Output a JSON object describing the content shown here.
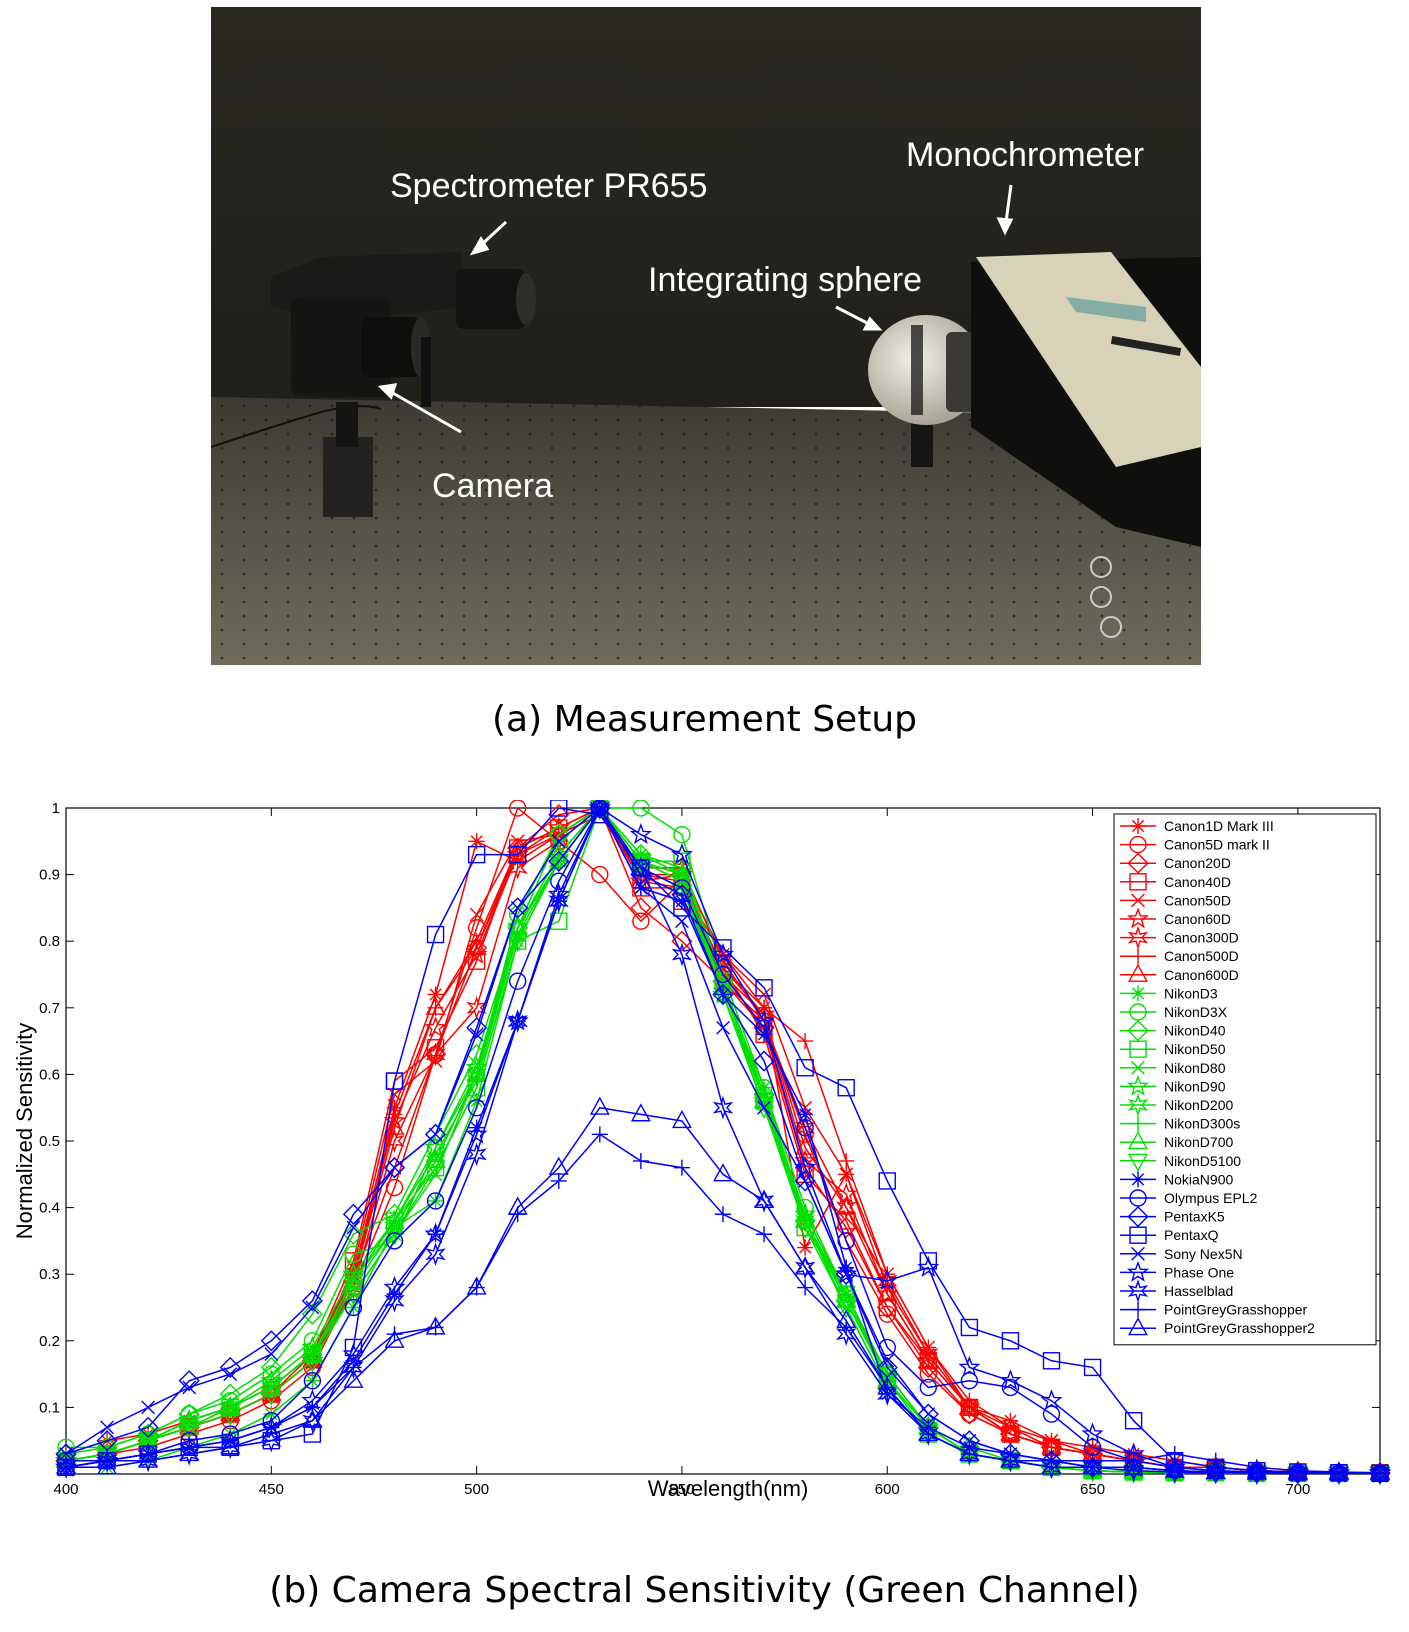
{
  "panel_a": {
    "caption": "(a) Measurement Setup",
    "labels": {
      "spectrometer": "Spectrometer PR655",
      "monochrometer": "Monochrometer",
      "integrating_sphere": "Integrating sphere",
      "camera": "Camera"
    }
  },
  "panel_b": {
    "caption": "(b) Camera Spectral Sensitivity (Green Channel)"
  },
  "colors": {
    "red": "#ff0000",
    "green": "#00e000",
    "blue": "#0000ff"
  },
  "chart_data": {
    "type": "line",
    "xlabel": "Wavelength(nm)",
    "ylabel": "Normalized Sensitivity",
    "xlim": [
      400,
      720
    ],
    "ylim": [
      0,
      1
    ],
    "xticks": [
      400,
      450,
      500,
      550,
      600,
      650,
      700
    ],
    "yticks": [
      0.1,
      0.2,
      0.3,
      0.4,
      0.5,
      0.6,
      0.7,
      0.8,
      0.9,
      1
    ],
    "grid": false,
    "legend_position": "top-right",
    "x": [
      400,
      410,
      420,
      430,
      440,
      450,
      460,
      470,
      480,
      490,
      500,
      510,
      520,
      530,
      540,
      550,
      560,
      570,
      580,
      590,
      600,
      610,
      620,
      630,
      640,
      650,
      660,
      670,
      680,
      690,
      700,
      710,
      720
    ],
    "series": [
      {
        "name": "Canon1D Mark III",
        "color": "red",
        "marker": "asterisk",
        "values": [
          0.03,
          0.05,
          0.06,
          0.08,
          0.1,
          0.13,
          0.18,
          0.3,
          0.55,
          0.72,
          0.95,
          0.92,
          0.96,
          1.0,
          0.9,
          0.89,
          0.76,
          0.7,
          0.34,
          0.45,
          0.28,
          0.18,
          0.1,
          0.08,
          0.05,
          0.04,
          0.03,
          0.02,
          0.01,
          0.005,
          0.003,
          0.002,
          0.002
        ]
      },
      {
        "name": "Canon5D mark II",
        "color": "red",
        "marker": "circle",
        "values": [
          0.02,
          0.03,
          0.04,
          0.06,
          0.08,
          0.11,
          0.16,
          0.28,
          0.43,
          0.63,
          0.82,
          1.0,
          0.95,
          0.9,
          0.83,
          0.89,
          0.74,
          0.68,
          0.51,
          0.35,
          0.24,
          0.15,
          0.09,
          0.06,
          0.04,
          0.03,
          0.02,
          0.01,
          0.01,
          0.005,
          0.003,
          0.002,
          0.002
        ]
      },
      {
        "name": "Canon20D",
        "color": "red",
        "marker": "diamond",
        "values": [
          0.02,
          0.03,
          0.05,
          0.07,
          0.09,
          0.12,
          0.17,
          0.29,
          0.46,
          0.63,
          0.79,
          0.94,
          0.99,
          1.0,
          0.85,
          0.8,
          0.74,
          0.67,
          0.46,
          0.37,
          0.25,
          0.16,
          0.09,
          0.06,
          0.04,
          0.03,
          0.02,
          0.01,
          0.01,
          0.005,
          0.003,
          0.002,
          0.002
        ]
      },
      {
        "name": "Canon40D",
        "color": "red",
        "marker": "square",
        "values": [
          0.02,
          0.03,
          0.05,
          0.07,
          0.09,
          0.12,
          0.18,
          0.32,
          0.59,
          0.64,
          0.77,
          0.94,
          0.97,
          1.0,
          0.88,
          0.86,
          0.76,
          0.66,
          0.45,
          0.38,
          0.25,
          0.17,
          0.1,
          0.06,
          0.04,
          0.03,
          0.02,
          0.01,
          0.01,
          0.005,
          0.003,
          0.002,
          0.002
        ]
      },
      {
        "name": "Canon50D",
        "color": "red",
        "marker": "x",
        "values": [
          0.02,
          0.03,
          0.05,
          0.07,
          0.09,
          0.12,
          0.17,
          0.31,
          0.57,
          0.62,
          0.84,
          0.95,
          0.96,
          0.99,
          0.9,
          0.9,
          0.78,
          0.72,
          0.55,
          0.45,
          0.3,
          0.19,
          0.1,
          0.07,
          0.05,
          0.03,
          0.02,
          0.01,
          0.01,
          0.005,
          0.003,
          0.002,
          0.002
        ]
      },
      {
        "name": "Canon60D",
        "color": "red",
        "marker": "star5",
        "values": [
          0.02,
          0.03,
          0.05,
          0.07,
          0.09,
          0.12,
          0.17,
          0.3,
          0.53,
          0.67,
          0.78,
          0.93,
          0.97,
          1.0,
          0.89,
          0.9,
          0.75,
          0.69,
          0.47,
          0.42,
          0.27,
          0.17,
          0.1,
          0.06,
          0.04,
          0.03,
          0.02,
          0.01,
          0.01,
          0.005,
          0.003,
          0.002,
          0.002
        ]
      },
      {
        "name": "Canon300D",
        "color": "red",
        "marker": "star6",
        "values": [
          0.02,
          0.03,
          0.05,
          0.07,
          0.09,
          0.12,
          0.17,
          0.28,
          0.5,
          0.63,
          0.7,
          0.91,
          0.95,
          1.0,
          0.91,
          0.91,
          0.77,
          0.68,
          0.52,
          0.4,
          0.29,
          0.18,
          0.1,
          0.06,
          0.04,
          0.03,
          0.02,
          0.01,
          0.01,
          0.005,
          0.003,
          0.002,
          0.002
        ]
      },
      {
        "name": "Canon500D",
        "color": "red",
        "marker": "plus",
        "values": [
          0.02,
          0.03,
          0.05,
          0.07,
          0.09,
          0.12,
          0.17,
          0.29,
          0.54,
          0.7,
          0.8,
          0.94,
          0.97,
          1.0,
          0.88,
          0.88,
          0.78,
          0.7,
          0.65,
          0.47,
          0.3,
          0.19,
          0.11,
          0.07,
          0.04,
          0.03,
          0.02,
          0.01,
          0.01,
          0.005,
          0.003,
          0.002,
          0.002
        ]
      },
      {
        "name": "Canon600D",
        "color": "red",
        "marker": "triangle-up",
        "values": [
          0.02,
          0.03,
          0.05,
          0.07,
          0.09,
          0.12,
          0.17,
          0.29,
          0.52,
          0.7,
          0.79,
          0.93,
          0.96,
          1.0,
          0.89,
          0.88,
          0.76,
          0.69,
          0.49,
          0.4,
          0.27,
          0.17,
          0.1,
          0.06,
          0.04,
          0.03,
          0.02,
          0.01,
          0.01,
          0.005,
          0.003,
          0.002,
          0.002
        ]
      },
      {
        "name": "NikonD3",
        "color": "green",
        "marker": "asterisk",
        "values": [
          0.01,
          0.01,
          0.02,
          0.04,
          0.06,
          0.09,
          0.14,
          0.25,
          0.37,
          0.41,
          0.56,
          0.8,
          0.92,
          1.0,
          0.93,
          0.9,
          0.73,
          0.58,
          0.38,
          0.27,
          0.14,
          0.07,
          0.03,
          0.02,
          0.01,
          0.005,
          0.003,
          0.002,
          0.002,
          0.001,
          0.001,
          0.001,
          0.001
        ]
      },
      {
        "name": "NikonD3X",
        "color": "green",
        "marker": "circle",
        "values": [
          0.04,
          0.04,
          0.06,
          0.09,
          0.11,
          0.15,
          0.2,
          0.33,
          0.35,
          0.49,
          0.6,
          0.84,
          0.96,
          1.0,
          1.0,
          0.96,
          0.75,
          0.58,
          0.4,
          0.27,
          0.15,
          0.07,
          0.03,
          0.02,
          0.01,
          0.005,
          0.003,
          0.002,
          0.002,
          0.001,
          0.001,
          0.001,
          0.001
        ]
      },
      {
        "name": "NikonD40",
        "color": "green",
        "marker": "diamond",
        "values": [
          0.03,
          0.04,
          0.06,
          0.09,
          0.12,
          0.16,
          0.24,
          0.36,
          0.39,
          0.51,
          0.63,
          0.82,
          0.96,
          1.0,
          0.93,
          0.91,
          0.74,
          0.57,
          0.38,
          0.26,
          0.15,
          0.07,
          0.04,
          0.02,
          0.01,
          0.005,
          0.003,
          0.002,
          0.002,
          0.001,
          0.001,
          0.001,
          0.001
        ]
      },
      {
        "name": "NikonD50",
        "color": "green",
        "marker": "square",
        "values": [
          0.02,
          0.03,
          0.05,
          0.07,
          0.1,
          0.13,
          0.18,
          0.29,
          0.38,
          0.46,
          0.58,
          0.8,
          0.83,
          1.0,
          0.92,
          0.92,
          0.74,
          0.56,
          0.37,
          0.27,
          0.14,
          0.06,
          0.03,
          0.02,
          0.01,
          0.005,
          0.003,
          0.002,
          0.002,
          0.001,
          0.001,
          0.001,
          0.001
        ]
      },
      {
        "name": "NikonD80",
        "color": "green",
        "marker": "x",
        "values": [
          0.02,
          0.03,
          0.05,
          0.07,
          0.1,
          0.13,
          0.18,
          0.27,
          0.36,
          0.45,
          0.6,
          0.81,
          0.92,
          1.0,
          0.92,
          0.89,
          0.72,
          0.55,
          0.38,
          0.25,
          0.13,
          0.06,
          0.03,
          0.02,
          0.01,
          0.005,
          0.003,
          0.002,
          0.002,
          0.001,
          0.001,
          0.001,
          0.001
        ]
      },
      {
        "name": "NikonD90",
        "color": "green",
        "marker": "star5",
        "values": [
          0.02,
          0.03,
          0.05,
          0.08,
          0.1,
          0.14,
          0.19,
          0.3,
          0.38,
          0.49,
          0.61,
          0.82,
          0.93,
          1.0,
          0.91,
          0.88,
          0.72,
          0.56,
          0.39,
          0.27,
          0.15,
          0.07,
          0.03,
          0.02,
          0.01,
          0.005,
          0.003,
          0.002,
          0.002,
          0.001,
          0.001,
          0.001,
          0.001
        ]
      },
      {
        "name": "NikonD200",
        "color": "green",
        "marker": "star6",
        "values": [
          0.02,
          0.03,
          0.05,
          0.08,
          0.1,
          0.13,
          0.18,
          0.29,
          0.37,
          0.47,
          0.6,
          0.82,
          0.92,
          1.0,
          0.92,
          0.9,
          0.73,
          0.56,
          0.38,
          0.26,
          0.14,
          0.07,
          0.03,
          0.02,
          0.01,
          0.005,
          0.003,
          0.002,
          0.002,
          0.001,
          0.001,
          0.001,
          0.001
        ]
      },
      {
        "name": "NikonD300s",
        "color": "green",
        "marker": "plus",
        "values": [
          0.02,
          0.03,
          0.05,
          0.08,
          0.1,
          0.13,
          0.18,
          0.29,
          0.38,
          0.48,
          0.59,
          0.81,
          0.92,
          1.0,
          0.92,
          0.9,
          0.73,
          0.57,
          0.39,
          0.27,
          0.15,
          0.07,
          0.03,
          0.02,
          0.01,
          0.005,
          0.003,
          0.002,
          0.002,
          0.001,
          0.001,
          0.001,
          0.001
        ]
      },
      {
        "name": "NikonD700",
        "color": "green",
        "marker": "triangle-up",
        "values": [
          0.02,
          0.03,
          0.05,
          0.08,
          0.1,
          0.13,
          0.18,
          0.28,
          0.37,
          0.47,
          0.6,
          0.82,
          0.93,
          1.0,
          0.92,
          0.89,
          0.73,
          0.56,
          0.38,
          0.26,
          0.14,
          0.07,
          0.03,
          0.02,
          0.01,
          0.005,
          0.003,
          0.002,
          0.002,
          0.001,
          0.001,
          0.001,
          0.001
        ]
      },
      {
        "name": "NikonD5100",
        "color": "green",
        "marker": "triangle-down",
        "values": [
          0.02,
          0.03,
          0.05,
          0.07,
          0.09,
          0.12,
          0.17,
          0.27,
          0.36,
          0.46,
          0.58,
          0.8,
          0.92,
          1.0,
          0.92,
          0.89,
          0.72,
          0.55,
          0.37,
          0.25,
          0.13,
          0.06,
          0.03,
          0.02,
          0.01,
          0.005,
          0.003,
          0.002,
          0.002,
          0.001,
          0.001,
          0.001,
          0.001
        ]
      },
      {
        "name": "NokiaN900",
        "color": "blue",
        "marker": "asterisk",
        "values": [
          0.01,
          0.02,
          0.03,
          0.04,
          0.05,
          0.07,
          0.1,
          0.17,
          0.27,
          0.36,
          0.52,
          0.68,
          0.86,
          1.0,
          0.88,
          0.86,
          0.72,
          0.66,
          0.54,
          0.31,
          0.12,
          0.07,
          0.04,
          0.03,
          0.02,
          0.01,
          0.01,
          0.005,
          0.003,
          0.002,
          0.001,
          0.001,
          0.001
        ]
      },
      {
        "name": "Olympus EPL2",
        "color": "blue",
        "marker": "circle",
        "values": [
          0.02,
          0.02,
          0.03,
          0.05,
          0.06,
          0.08,
          0.14,
          0.25,
          0.35,
          0.41,
          0.55,
          0.74,
          0.89,
          1.0,
          0.91,
          0.88,
          0.75,
          0.67,
          0.52,
          0.35,
          0.19,
          0.13,
          0.14,
          0.13,
          0.09,
          0.04,
          0.02,
          0.01,
          0.005,
          0.003,
          0.002,
          0.001,
          0.001
        ]
      },
      {
        "name": "PentaxK5",
        "color": "blue",
        "marker": "diamond",
        "values": [
          0.03,
          0.05,
          0.07,
          0.14,
          0.16,
          0.2,
          0.26,
          0.39,
          0.46,
          0.51,
          0.67,
          0.85,
          0.92,
          1.0,
          0.9,
          0.87,
          0.72,
          0.62,
          0.44,
          0.3,
          0.16,
          0.09,
          0.05,
          0.03,
          0.02,
          0.01,
          0.01,
          0.005,
          0.003,
          0.002,
          0.001,
          0.001,
          0.001
        ]
      },
      {
        "name": "PentaxQ",
        "color": "blue",
        "marker": "square",
        "values": [
          0.01,
          0.02,
          0.03,
          0.04,
          0.04,
          0.05,
          0.06,
          0.19,
          0.59,
          0.81,
          0.93,
          0.93,
          1.0,
          0.99,
          0.91,
          0.85,
          0.79,
          0.73,
          0.61,
          0.58,
          0.44,
          0.32,
          0.22,
          0.2,
          0.17,
          0.16,
          0.08,
          0.02,
          0.01,
          0.005,
          0.003,
          0.002,
          0.001
        ]
      },
      {
        "name": "Sony Nex5N",
        "color": "blue",
        "marker": "x",
        "values": [
          0.03,
          0.07,
          0.1,
          0.13,
          0.15,
          0.18,
          0.25,
          0.37,
          0.46,
          0.51,
          0.66,
          0.85,
          0.95,
          1.0,
          0.88,
          0.83,
          0.67,
          0.55,
          0.44,
          0.3,
          0.17,
          0.09,
          0.05,
          0.03,
          0.02,
          0.01,
          0.01,
          0.005,
          0.003,
          0.002,
          0.001,
          0.001,
          0.001
        ]
      },
      {
        "name": "Phase One",
        "color": "blue",
        "marker": "star5",
        "values": [
          0.01,
          0.02,
          0.03,
          0.04,
          0.05,
          0.07,
          0.11,
          0.18,
          0.28,
          0.36,
          0.51,
          0.68,
          0.87,
          1.0,
          0.96,
          0.93,
          0.78,
          0.68,
          0.46,
          0.3,
          0.29,
          0.31,
          0.16,
          0.14,
          0.11,
          0.06,
          0.03,
          0.01,
          0.005,
          0.003,
          0.002,
          0.001,
          0.001
        ]
      },
      {
        "name": "Hasselblad",
        "color": "blue",
        "marker": "star6",
        "values": [
          0.01,
          0.02,
          0.02,
          0.03,
          0.04,
          0.05,
          0.08,
          0.16,
          0.26,
          0.33,
          0.48,
          0.68,
          0.86,
          1.0,
          0.91,
          0.78,
          0.55,
          0.41,
          0.31,
          0.21,
          0.12,
          0.06,
          0.03,
          0.02,
          0.01,
          0.01,
          0.005,
          0.003,
          0.002,
          0.001,
          0.001,
          0.001,
          0.001
        ]
      },
      {
        "name": "PointGreyGrasshopper",
        "color": "blue",
        "marker": "plus",
        "values": [
          0.01,
          0.02,
          0.03,
          0.04,
          0.05,
          0.07,
          0.1,
          0.16,
          0.21,
          0.22,
          0.28,
          0.39,
          0.44,
          0.51,
          0.47,
          0.46,
          0.39,
          0.36,
          0.28,
          0.22,
          0.13,
          0.06,
          0.03,
          0.02,
          0.02,
          0.02,
          0.02,
          0.03,
          0.02,
          0.01,
          0.005,
          0.003,
          0.002
        ]
      },
      {
        "name": "PointGreyGrasshopper2",
        "color": "blue",
        "marker": "triangle-up",
        "values": [
          0.01,
          0.01,
          0.02,
          0.03,
          0.04,
          0.06,
          0.08,
          0.14,
          0.2,
          0.22,
          0.28,
          0.4,
          0.46,
          0.55,
          0.54,
          0.53,
          0.45,
          0.41,
          0.31,
          0.23,
          0.13,
          0.06,
          0.03,
          0.02,
          0.01,
          0.01,
          0.01,
          0.005,
          0.003,
          0.002,
          0.001,
          0.001,
          0.001
        ]
      }
    ]
  }
}
